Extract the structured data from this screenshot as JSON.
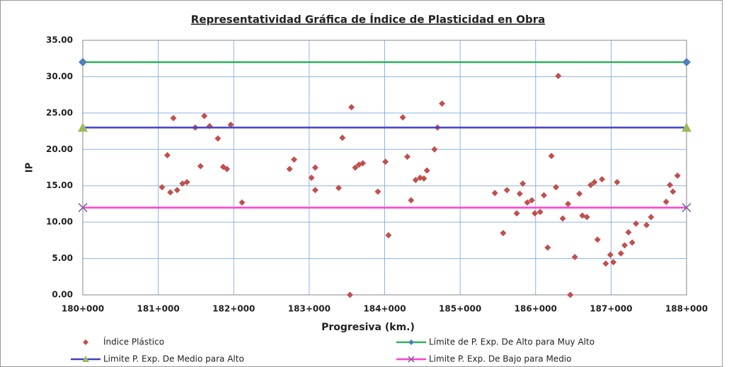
{
  "chart_data": {
    "type": "scatter",
    "title": "Representatividad Gráfica de Índice de Plasticidad en Obra",
    "xlabel": "Progresiva (km.)",
    "ylabel": "IP",
    "xlim": [
      180,
      188
    ],
    "xticks": [
      {
        "value": 180,
        "label": "180+000"
      },
      {
        "value": 181,
        "label": "181+000"
      },
      {
        "value": 182,
        "label": "182+000"
      },
      {
        "value": 183,
        "label": "183+000"
      },
      {
        "value": 184,
        "label": "184+000"
      },
      {
        "value": 185,
        "label": "185+000"
      },
      {
        "value": 186,
        "label": "186+000"
      },
      {
        "value": 187,
        "label": "187+000"
      },
      {
        "value": 188,
        "label": "188+000"
      }
    ],
    "ylim": [
      0,
      35
    ],
    "yticks": [
      {
        "value": 0,
        "label": "0.00"
      },
      {
        "value": 5,
        "label": "5.00"
      },
      {
        "value": 10,
        "label": "10.00"
      },
      {
        "value": 15,
        "label": "15.00"
      },
      {
        "value": 20,
        "label": "20.00"
      },
      {
        "value": 25,
        "label": "25.00"
      },
      {
        "value": 30,
        "label": "30.00"
      },
      {
        "value": 35,
        "label": "35.00"
      }
    ],
    "grid": true,
    "legend": "bottom",
    "series": [
      {
        "name": "Índice Plástico",
        "color": "#c0504d",
        "marker": "diamond",
        "x": [
          181.05,
          181.12,
          181.16,
          181.2,
          181.25,
          181.32,
          181.38,
          181.49,
          181.56,
          181.61,
          181.68,
          181.79,
          181.86,
          181.91,
          181.96,
          182.11,
          182.74,
          182.8,
          183.03,
          183.08,
          183.08,
          183.39,
          183.44,
          183.54,
          183.56,
          183.61,
          183.66,
          183.71,
          183.91,
          184.01,
          184.05,
          184.24,
          184.3,
          184.35,
          184.41,
          184.47,
          184.52,
          184.56,
          184.66,
          184.7,
          184.76,
          185.46,
          185.57,
          185.62,
          185.75,
          185.79,
          185.83,
          185.89,
          185.95,
          185.99,
          186.06,
          186.11,
          186.16,
          186.21,
          186.27,
          186.3,
          186.36,
          186.43,
          186.46,
          186.52,
          186.58,
          186.62,
          186.68,
          186.73,
          186.78,
          186.82,
          186.88,
          186.93,
          186.99,
          187.03,
          187.08,
          187.13,
          187.18,
          187.23,
          187.28,
          187.33,
          187.47,
          187.53,
          187.73,
          187.78,
          187.82,
          187.88
        ],
        "values": [
          14.8,
          19.2,
          14.1,
          24.3,
          14.4,
          15.3,
          15.5,
          23.0,
          17.7,
          24.6,
          23.2,
          21.5,
          17.6,
          17.3,
          23.4,
          12.7,
          17.3,
          18.6,
          16.1,
          17.5,
          14.4,
          14.7,
          21.6,
          0,
          25.8,
          17.5,
          17.9,
          18.1,
          14.2,
          18.3,
          8.2,
          24.4,
          19.0,
          13.0,
          15.8,
          16.1,
          16.0,
          17.1,
          20.0,
          23.0,
          26.3,
          14.0,
          8.5,
          14.4,
          11.2,
          13.9,
          15.3,
          12.7,
          13.0,
          11.2,
          11.4,
          13.7,
          6.5,
          19.1,
          14.8,
          30.1,
          10.5,
          12.5,
          0,
          5.2,
          13.9,
          10.9,
          10.7,
          15.1,
          15.5,
          7.6,
          15.9,
          4.3,
          5.5,
          4.5,
          15.5,
          5.7,
          6.8,
          8.6,
          7.2,
          9.8,
          9.6,
          10.7,
          12.8,
          15.1,
          14.2,
          16.4
        ]
      },
      {
        "name": "Límite de P. Exp. De Alto para Muy Alto",
        "color": "#2fb35a",
        "marker": "diamond",
        "marker_color": "#4f81bd",
        "x": [
          180,
          188
        ],
        "values": [
          32,
          32
        ]
      },
      {
        "name": "Limite P. Exp. De Medio para Alto",
        "color": "#4040c8",
        "marker": "triangle",
        "marker_color": "#9bbb59",
        "x": [
          180,
          188
        ],
        "values": [
          23,
          23
        ]
      },
      {
        "name": "Limite P. Exp. De Bajo para Medio",
        "color": "#ff3fd0",
        "marker": "x",
        "marker_color": "#8064a2",
        "x": [
          180,
          188
        ],
        "values": [
          12,
          12
        ]
      }
    ]
  }
}
